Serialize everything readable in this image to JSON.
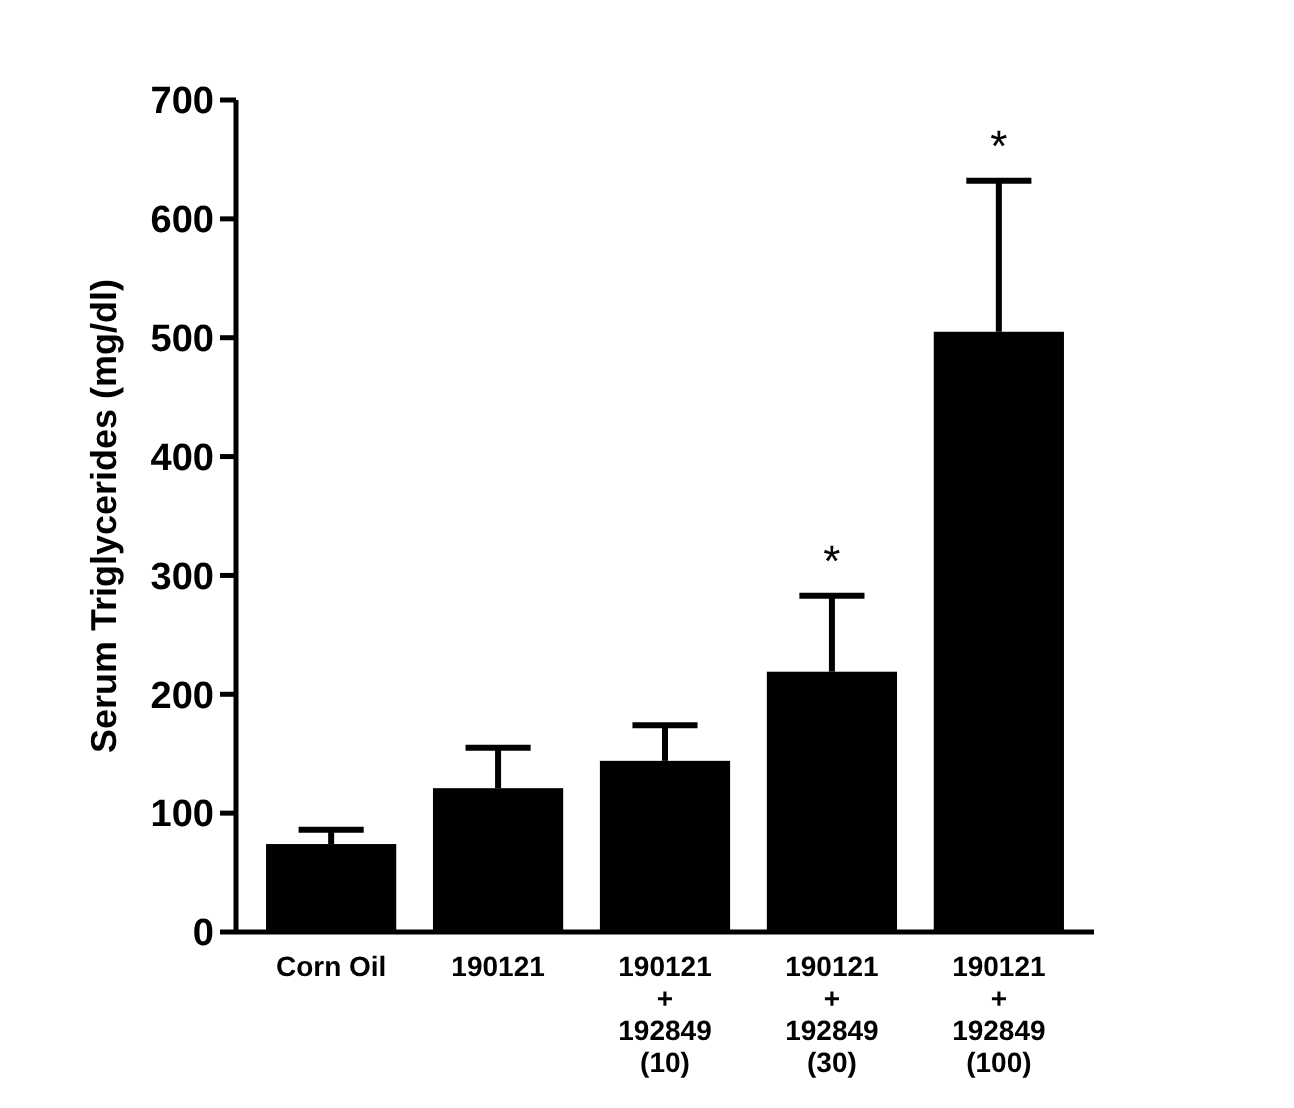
{
  "chart_data": {
    "type": "bar",
    "ylabel": "Serum Triglycerides (mg/dl)",
    "categories": [
      "Corn Oil",
      "190121",
      "190121\n+\n192849\n(10)",
      "190121\n+\n192849\n(30)",
      "190121\n+\n192849\n(100)"
    ],
    "values": [
      74,
      121,
      144,
      219,
      505
    ],
    "errors": [
      [
        74,
        86
      ],
      [
        121,
        155
      ],
      [
        144,
        174
      ],
      [
        219,
        283
      ],
      [
        505,
        632
      ]
    ],
    "color": "#000000",
    "ylim": [
      0,
      700
    ],
    "yticks": [
      0,
      100,
      200,
      300,
      400,
      500,
      600,
      700
    ],
    "annotations": [
      {
        "text": "*",
        "x": "190121\n+\n192849\n(30)",
        "y": 283
      },
      {
        "text": "*",
        "x": "190121\n+\n192849\n(100)",
        "y": 632
      }
    ],
    "grid": false
  }
}
